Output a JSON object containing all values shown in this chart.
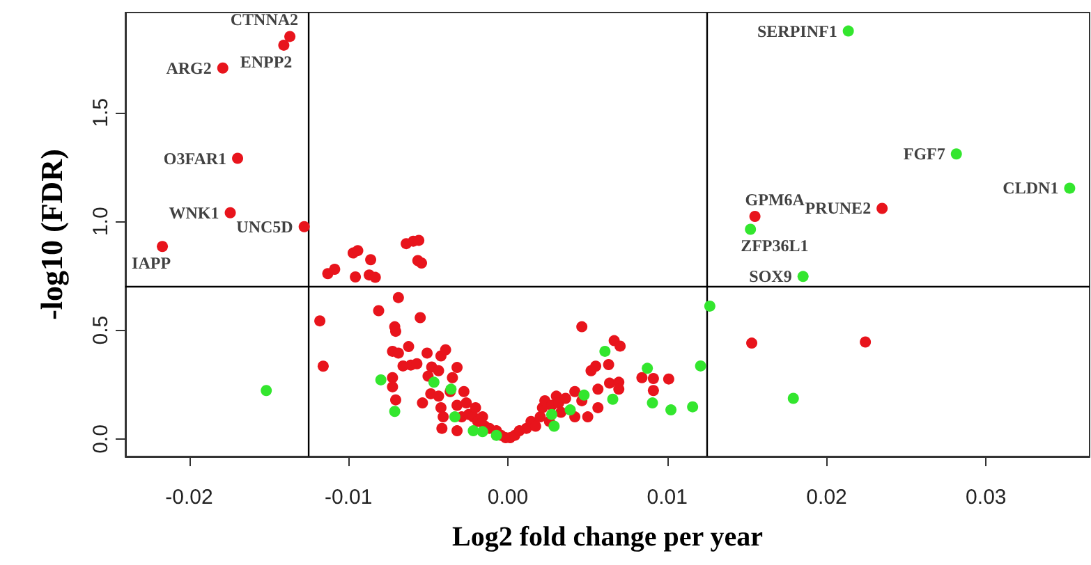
{
  "chart_data": {
    "type": "scatter",
    "xlabel": "Log2 fold change per year",
    "ylabel": "-log10 (FDR)",
    "xlim": [
      -0.024,
      0.0365
    ],
    "ylim": [
      -0.08,
      1.96
    ],
    "xticks": [
      -0.02,
      -0.01,
      {
        "value": 0,
        "label": "0.00"
      },
      0.01,
      0.02,
      0.03
    ],
    "yticks": [
      {
        "value": 0,
        "label": "0.0"
      },
      0.5,
      {
        "value": 1,
        "label": "1.0"
      },
      1.5
    ],
    "grid": false,
    "marker": "circle",
    "ref_lines": [
      {
        "axis": "x",
        "value": -0.0125,
        "color": "#000000"
      },
      {
        "axis": "x",
        "value": 0.0125,
        "color": "#000000"
      },
      {
        "axis": "y",
        "value": 0.7,
        "color": "#000000"
      }
    ],
    "series": [
      {
        "color": "#e8141c",
        "x": [
          -0.01368,
          -0.01406,
          -0.01789,
          -0.01696,
          -0.01742,
          -0.01278,
          -0.02168,
          0.02348,
          0.0155,
          0.0153,
          0.02243,
          -0.0113,
          -0.01087,
          -0.00971,
          -0.00942,
          -0.00861,
          -0.00957,
          -0.0087,
          -0.00832,
          -0.00638,
          -0.00594,
          -0.00559,
          -0.00565,
          -0.00542,
          -0.0118,
          -0.01159,
          -0.00811,
          -0.00687,
          -0.0055,
          -0.0071,
          -0.00704,
          -0.00724,
          -0.00687,
          -0.00623,
          -0.00658,
          -0.00609,
          -0.00571,
          -0.00724,
          -0.00724,
          -0.00704,
          -0.00536,
          -0.00507,
          -0.0042,
          -0.00391,
          -0.00478,
          -0.00435,
          -0.00501,
          -0.00319,
          -0.00348,
          -0.00484,
          -0.00435,
          -0.0042,
          -0.00406,
          -0.00414,
          -0.00362,
          -0.00319,
          -0.00276,
          -0.00261,
          -0.0029,
          -0.00319,
          -0.00246,
          -0.00217,
          -0.00203,
          -0.00189,
          -0.00159,
          -0.00145,
          -0.00116,
          -0.00072,
          -0.00043,
          -0.00014,
          0.00014,
          0.00043,
          0.00072,
          0.00116,
          0.00145,
          0.00174,
          0.00203,
          0.00217,
          0.00232,
          0.00261,
          0.00275,
          0.00304,
          0.00319,
          0.00333,
          0.00362,
          0.0042,
          0.0042,
          0.00464,
          0.00464,
          0.00501,
          0.00522,
          0.00551,
          0.00565,
          0.00565,
          0.00632,
          0.00638,
          0.00667,
          0.00704,
          0.00696,
          0.00696,
          0.00841,
          0.00913,
          0.00913,
          0.01009
        ],
        "values": [
          1.85,
          1.81,
          1.705,
          1.29,
          1.04,
          0.976,
          0.885,
          1.06,
          1.023,
          0.441,
          0.446,
          0.76,
          0.78,
          0.855,
          0.866,
          0.824,
          0.745,
          0.754,
          0.743,
          0.898,
          0.909,
          0.913,
          0.82,
          0.809,
          0.543,
          0.335,
          0.59,
          0.65,
          0.558,
          0.516,
          0.495,
          0.403,
          0.395,
          0.425,
          0.336,
          0.34,
          0.346,
          0.282,
          0.24,
          0.18,
          0.166,
          0.395,
          0.382,
          0.41,
          0.331,
          0.314,
          0.289,
          0.329,
          0.282,
          0.208,
          0.197,
          0.144,
          0.102,
          0.049,
          0.218,
          0.155,
          0.218,
          0.166,
          0.102,
          0.038,
          0.113,
          0.102,
          0.144,
          0.081,
          0.102,
          0.059,
          0.049,
          0.038,
          0.017,
          0.006,
          0.006,
          0.017,
          0.038,
          0.049,
          0.081,
          0.059,
          0.102,
          0.144,
          0.176,
          0.081,
          0.155,
          0.197,
          0.166,
          0.123,
          0.187,
          0.218,
          0.102,
          0.516,
          0.176,
          0.102,
          0.314,
          0.335,
          0.229,
          0.144,
          0.342,
          0.257,
          0.452,
          0.427,
          0.261,
          0.229,
          0.282,
          0.278,
          0.223,
          0.276
        ]
      },
      {
        "color": "#33e62e",
        "x": [
          0.02136,
          0.02814,
          0.03525,
          0.01522,
          0.01852,
          -0.01516,
          0.01791,
          -0.00797,
          -0.0071,
          -0.00464,
          -0.00357,
          -0.00333,
          -0.00217,
          -0.00159,
          -0.00072,
          0.00275,
          0.0029,
          0.00391,
          0.00478,
          0.00609,
          0.00658,
          0.00875,
          0.00907,
          0.01023,
          0.01159,
          0.01209,
          0.01267
        ],
        "values": [
          1.875,
          1.31,
          1.153,
          0.964,
          0.747,
          0.223,
          0.187,
          0.272,
          0.127,
          0.261,
          0.229,
          0.102,
          0.038,
          0.034,
          0.017,
          0.113,
          0.059,
          0.134,
          0.202,
          0.403,
          0.183,
          0.325,
          0.166,
          0.134,
          0.148,
          0.336,
          0.611
        ]
      }
    ],
    "annotations": [
      {
        "text": "CTNNA2",
        "x": -0.01368,
        "y": 1.85
      },
      {
        "text": "ENPP2",
        "x": -0.01406,
        "y": 1.81
      },
      {
        "text": "ARG2",
        "x": -0.01789,
        "y": 1.705
      },
      {
        "text": "O3FAR1",
        "x": -0.01696,
        "y": 1.29
      },
      {
        "text": "WNK1",
        "x": -0.01742,
        "y": 1.04
      },
      {
        "text": "UNC5D",
        "x": -0.01278,
        "y": 0.976
      },
      {
        "text": "IAPP",
        "x": -0.02168,
        "y": 0.885
      },
      {
        "text": "SERPINF1",
        "x": 0.02136,
        "y": 1.875
      },
      {
        "text": "FGF7",
        "x": 0.02814,
        "y": 1.31
      },
      {
        "text": "CLDN1",
        "x": 0.03525,
        "y": 1.153
      },
      {
        "text": "PRUNE2",
        "x": 0.02348,
        "y": 1.06
      },
      {
        "text": "GPM6A",
        "x": 0.0155,
        "y": 1.023
      },
      {
        "text": "ZFP36L1",
        "x": 0.01522,
        "y": 0.964
      },
      {
        "text": "SOX9",
        "x": 0.01852,
        "y": 0.747
      }
    ]
  }
}
